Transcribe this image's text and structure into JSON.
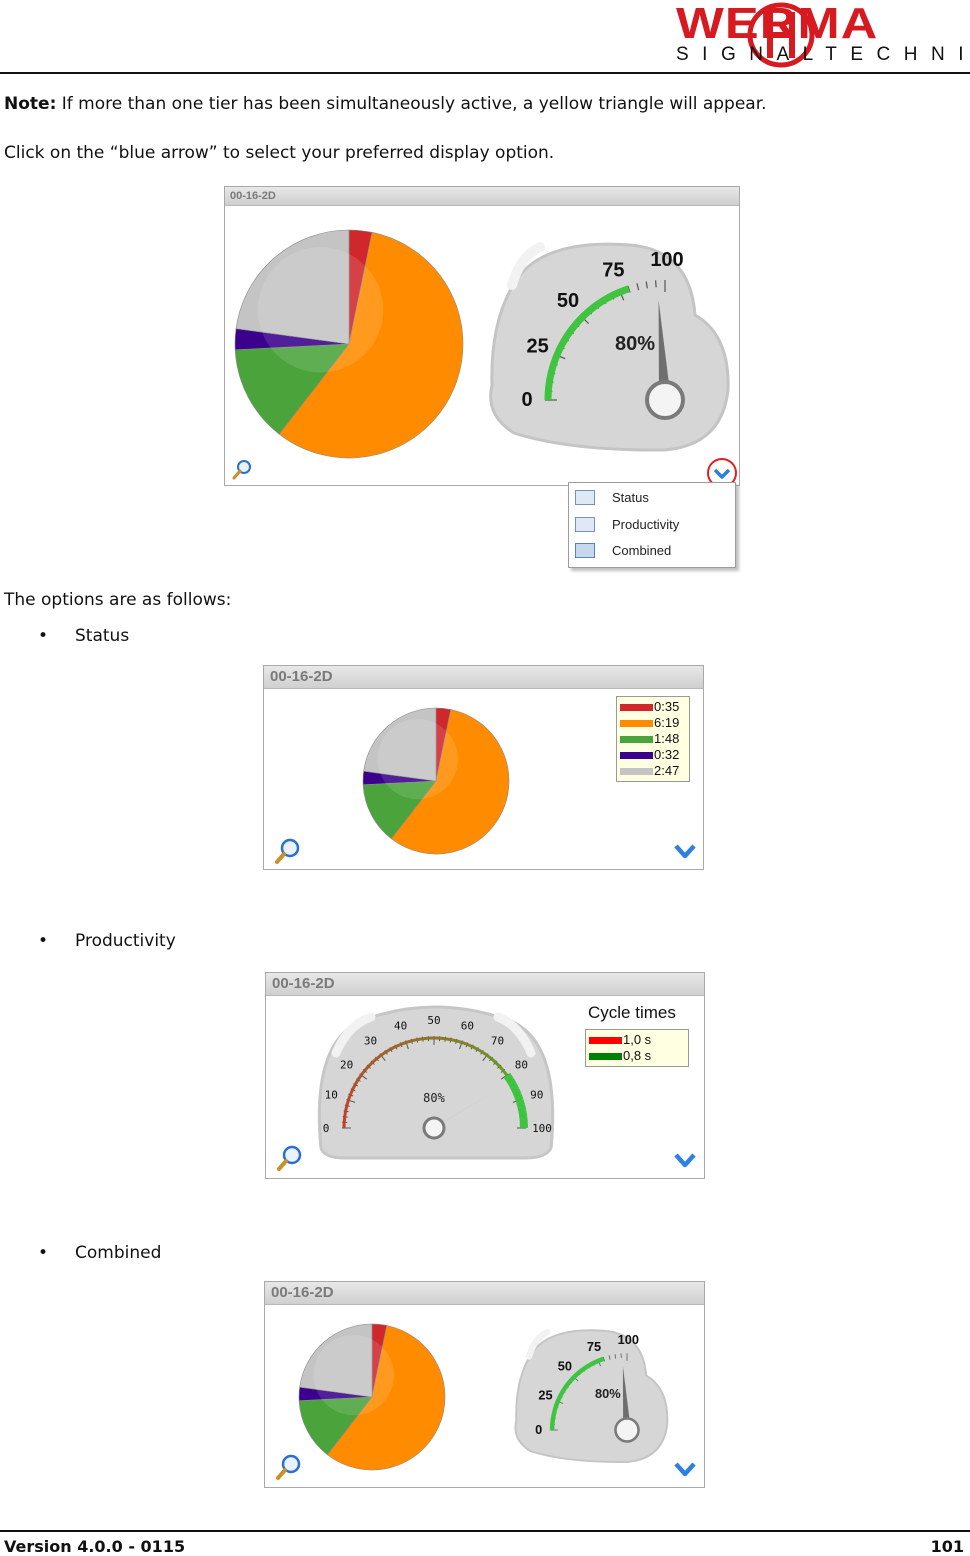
{
  "header": {
    "logo_word": "WERMA",
    "logo_subtitle": "SIGNALTECHNIK"
  },
  "body": {
    "note_label": "Note:",
    "note_text": " If more than one tier has been simultaneously active, a yellow triangle will appear.",
    "instruction": "Click on the “blue arrow” to select your preferred display option.",
    "options_intro": "The options are as follows:"
  },
  "widgets": {
    "device_id": "00-16-2D",
    "menu": {
      "items": [
        {
          "label": "Status",
          "icon": "status-icon"
        },
        {
          "label": "Productivity",
          "icon": "productivity-icon"
        },
        {
          "label": "Combined",
          "icon": "combined-icon"
        }
      ]
    },
    "status_legend": [
      "0:35",
      "6:19",
      "1:48",
      "0:32",
      "2:47"
    ],
    "cycle_times_title": "Cycle times",
    "cycle_legend": [
      "1,0 s",
      "0,8 s"
    ],
    "gauge_small_ticks": [
      "0",
      "25",
      "50",
      "75",
      "100"
    ],
    "gauge_large_ticks": [
      "0",
      "10",
      "20",
      "30",
      "40",
      "50",
      "60",
      "70",
      "80",
      "90",
      "100"
    ],
    "gauge_value_label": "80%"
  },
  "bullets": [
    {
      "label": "Status"
    },
    {
      "label": "Productivity"
    },
    {
      "label": "Combined"
    }
  ],
  "chart_data": [
    {
      "type": "pie",
      "title": "",
      "series_colors": [
        "#d0272d",
        "#ff8c00",
        "#4aa33b",
        "#3b008c",
        "#c4c4c4"
      ],
      "values": [
        0.35,
        6.19,
        1.48,
        0.32,
        2.47
      ],
      "labels": [
        "0:35",
        "6:19",
        "1:48",
        "0:32",
        "2:47"
      ],
      "unit": "h:mm"
    },
    {
      "type": "gauge",
      "title": "Cycle times",
      "value": 80,
      "range": [
        0,
        100
      ],
      "value_label": "80%",
      "legend": [
        {
          "label": "1,0 s",
          "color": "#ff0000"
        },
        {
          "label": "0,8 s",
          "color": "#008000"
        }
      ]
    }
  ],
  "colors": {
    "brand_red": "#d71920",
    "selector_blue": "#2f7fe0",
    "highlight_ring": "#e02020",
    "gauge_green": "#3ec43e"
  },
  "footer": {
    "version": "Version 4.0.0 - 0115",
    "page": "101"
  }
}
